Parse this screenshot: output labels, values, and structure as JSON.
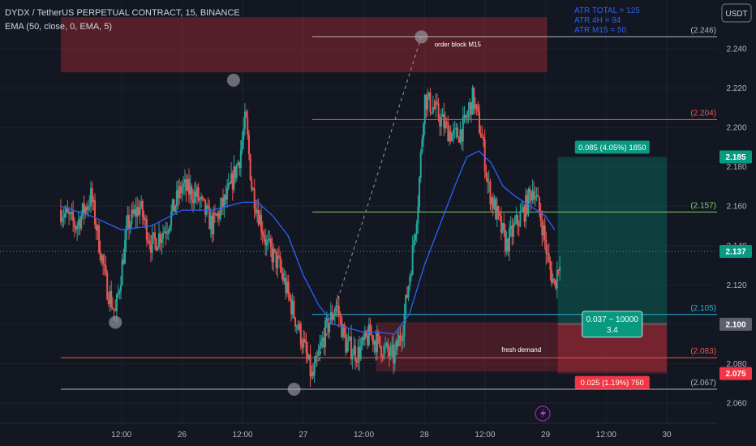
{
  "header": {
    "symbol": "DYDX / TetherUS PERPETUAL CONTRACT, 15, BINANCE",
    "indicator": "EMA (50, close, 0, EMA, 5)",
    "currency": "USDT"
  },
  "atr": [
    "ATR TOTAL = 125",
    "ATR 4H = 94",
    "ATR M15 = 50"
  ],
  "colors": {
    "background": "#131722",
    "up": "#26a69a",
    "down": "#ef5350",
    "ema": "#2962ff",
    "target_box": "#0e5c53",
    "stop_box": "#5c1f28"
  },
  "chart_data": {
    "type": "candlestick",
    "y_axis": {
      "range": [
        2.05,
        2.256
      ],
      "ticks": [
        "2.240",
        "2.220",
        "2.200",
        "2.180",
        "2.160",
        "2.140",
        "2.120",
        "2.100",
        "2.080",
        "2.060"
      ]
    },
    "x_axis": {
      "range": [
        0,
        20
      ],
      "ticks": [
        {
          "x": 2,
          "label": "12:00"
        },
        {
          "x": 4,
          "label": "26"
        },
        {
          "x": 6,
          "label": "12:00"
        },
        {
          "x": 8,
          "label": "27"
        },
        {
          "x": 10,
          "label": "12:00"
        },
        {
          "x": 12,
          "label": "28"
        },
        {
          "x": 14,
          "label": "12:00"
        },
        {
          "x": 16,
          "label": "29"
        },
        {
          "x": 18,
          "label": "12:00"
        },
        {
          "x": 20,
          "label": "30"
        }
      ]
    },
    "price_path": [
      [
        0.0,
        2.158
      ],
      [
        0.5,
        2.15
      ],
      [
        1.0,
        2.165
      ],
      [
        1.5,
        2.12
      ],
      [
        1.8,
        2.105
      ],
      [
        2.2,
        2.15
      ],
      [
        2.6,
        2.16
      ],
      [
        3.0,
        2.14
      ],
      [
        3.5,
        2.15
      ],
      [
        4.0,
        2.17
      ],
      [
        4.5,
        2.165
      ],
      [
        5.0,
        2.15
      ],
      [
        5.5,
        2.165
      ],
      [
        5.9,
        2.185
      ],
      [
        6.1,
        2.205
      ],
      [
        6.3,
        2.17
      ],
      [
        6.8,
        2.14
      ],
      [
        7.2,
        2.13
      ],
      [
        7.6,
        2.11
      ],
      [
        8.0,
        2.09
      ],
      [
        8.3,
        2.072
      ],
      [
        8.7,
        2.095
      ],
      [
        9.1,
        2.11
      ],
      [
        9.4,
        2.09
      ],
      [
        9.8,
        2.085
      ],
      [
        10.2,
        2.095
      ],
      [
        10.6,
        2.088
      ],
      [
        11.0,
        2.083
      ],
      [
        11.3,
        2.1
      ],
      [
        11.6,
        2.135
      ],
      [
        11.8,
        2.165
      ],
      [
        12.0,
        2.215
      ],
      [
        12.3,
        2.21
      ],
      [
        12.7,
        2.2
      ],
      [
        13.0,
        2.195
      ],
      [
        13.3,
        2.2
      ],
      [
        13.6,
        2.215
      ],
      [
        13.9,
        2.195
      ],
      [
        14.1,
        2.17
      ],
      [
        14.4,
        2.155
      ],
      [
        14.7,
        2.14
      ],
      [
        15.0,
        2.15
      ],
      [
        15.3,
        2.158
      ],
      [
        15.6,
        2.17
      ],
      [
        15.9,
        2.15
      ],
      [
        16.1,
        2.13
      ],
      [
        16.3,
        2.12
      ],
      [
        16.5,
        2.137
      ]
    ],
    "ema_path": [
      [
        0.0,
        2.16
      ],
      [
        1.0,
        2.155
      ],
      [
        2.0,
        2.148
      ],
      [
        3.0,
        2.15
      ],
      [
        4.0,
        2.158
      ],
      [
        5.0,
        2.158
      ],
      [
        6.0,
        2.162
      ],
      [
        6.5,
        2.162
      ],
      [
        7.0,
        2.155
      ],
      [
        7.5,
        2.145
      ],
      [
        8.0,
        2.125
      ],
      [
        8.5,
        2.11
      ],
      [
        9.0,
        2.1
      ],
      [
        9.5,
        2.098
      ],
      [
        10.0,
        2.096
      ],
      [
        10.5,
        2.096
      ],
      [
        11.0,
        2.095
      ],
      [
        11.5,
        2.105
      ],
      [
        12.0,
        2.13
      ],
      [
        12.5,
        2.15
      ],
      [
        13.0,
        2.17
      ],
      [
        13.4,
        2.185
      ],
      [
        13.8,
        2.188
      ],
      [
        14.2,
        2.182
      ],
      [
        14.6,
        2.17
      ],
      [
        15.0,
        2.165
      ],
      [
        15.5,
        2.16
      ],
      [
        16.0,
        2.155
      ],
      [
        16.3,
        2.148
      ]
    ],
    "levels": [
      {
        "price": 2.246,
        "label": "(2.246)",
        "color": "#b2b5be",
        "x_start": 8.3
      },
      {
        "price": 2.204,
        "label": "(2.204)",
        "color": "#ef5350",
        "x_start": 8.3
      },
      {
        "price": 2.157,
        "label": "(2.157)",
        "color": "#7fd06b",
        "x_start": 8.3
      },
      {
        "price": 2.105,
        "label": "(2.105)",
        "color": "#2ab3d6",
        "x_start": 8.3
      },
      {
        "price": 2.083,
        "label": "(2.083)",
        "color": "#ef5350",
        "x_start": 0
      },
      {
        "price": 2.067,
        "label": "(2.067)",
        "color": "#b2b5be",
        "x_start": 0
      }
    ],
    "zones": [
      {
        "label": "order block M15",
        "x_start": 0,
        "x_end": 16.05,
        "y_top": 2.256,
        "y_bottom": 2.228,
        "label_x": 13.1,
        "label_y": 2.241
      },
      {
        "label": "fresh demand",
        "x_start": 10.4,
        "x_end": 20.0,
        "y_top": 2.101,
        "y_bottom": 2.076,
        "label_x": 15.2,
        "label_y": 2.086
      }
    ],
    "dashed_line": [
      [
        8.3,
        2.072
      ],
      [
        11.9,
        2.246
      ]
    ],
    "swing_markers": [
      [
        1.8,
        2.101
      ],
      [
        5.7,
        2.224
      ],
      [
        7.7,
        2.067
      ],
      [
        11.9,
        2.246
      ]
    ],
    "trade": {
      "x_start": 16.4,
      "x_end": 20.0,
      "entry": 2.1,
      "target": 2.185,
      "stop": 2.075,
      "target_label": "0.085 (4.05%) 1850",
      "stop_label": "0.025 (1.19%) 750",
      "ratio_line1": "0.037 ~ 10000",
      "ratio_line2": "3.4"
    },
    "price_badges": [
      {
        "price": 2.185,
        "label": "2.185",
        "color": "#089981"
      },
      {
        "price": 2.137,
        "label": "2.137",
        "color": "#089981"
      },
      {
        "price": 2.1,
        "label": "2.100",
        "color": "#5d606b"
      },
      {
        "price": 2.075,
        "label": "2.075",
        "color": "#f23645"
      }
    ],
    "last_price": 2.137
  }
}
